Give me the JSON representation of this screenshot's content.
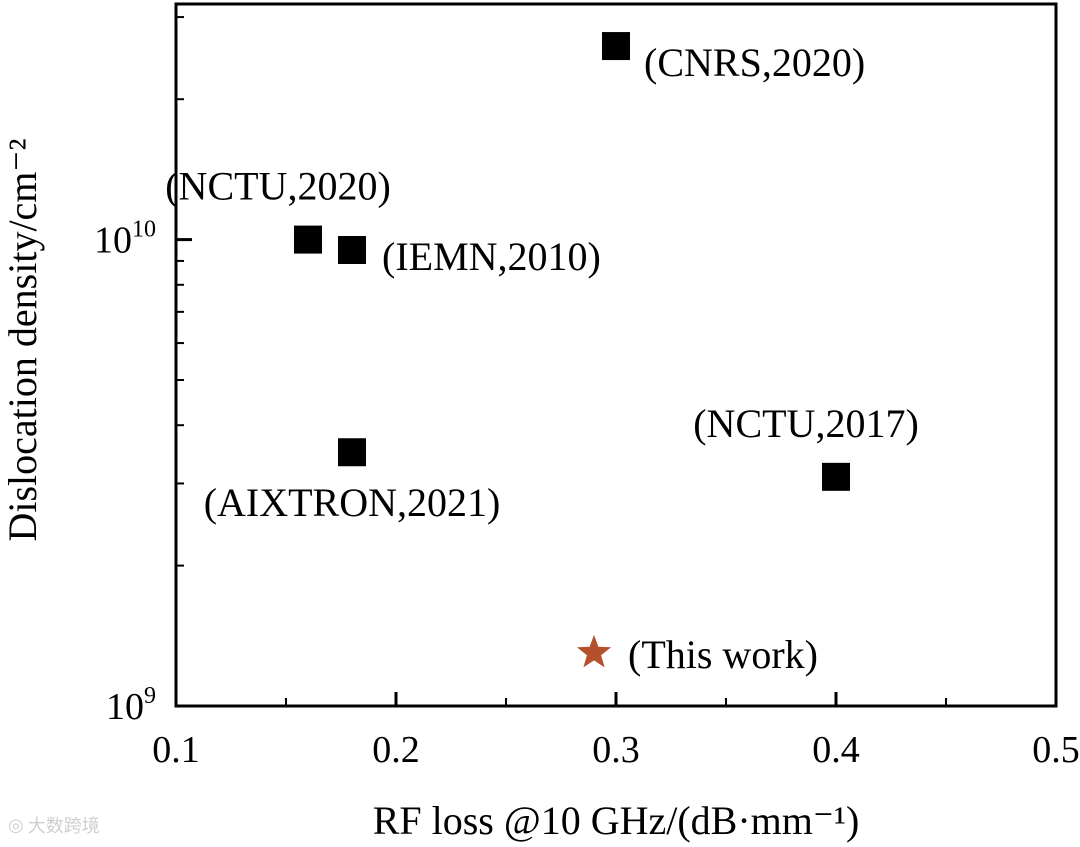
{
  "chart_data": {
    "type": "scatter",
    "title": "",
    "xlabel": "RF loss @10 GHz/(dB·mm⁻¹)",
    "ylabel": "Dislocation density/cm⁻²",
    "xlim": [
      0.1,
      0.5
    ],
    "ylim": [
      1000000000.0,
      30000000000.0
    ],
    "yscale": "log",
    "grid": false,
    "x_ticks": [
      "0.1",
      "0.2",
      "0.3",
      "0.4",
      "0.5"
    ],
    "y_ticks": [
      {
        "base": "10",
        "exp": "9"
      },
      {
        "base": "10",
        "exp": "10"
      }
    ],
    "points": [
      {
        "label": "(CNRS,2020)",
        "x": 0.3,
        "y": 26000000000.0,
        "marker": "square",
        "color": "#000000"
      },
      {
        "label": "(NCTU,2020)",
        "x": 0.16,
        "y": 10000000000.0,
        "marker": "square",
        "color": "#000000"
      },
      {
        "label": "(IEMN,2010)",
        "x": 0.18,
        "y": 9500000000.0,
        "marker": "square",
        "color": "#000000"
      },
      {
        "label": "(AIXTRON,2021)",
        "x": 0.18,
        "y": 3500000000.0,
        "marker": "square",
        "color": "#000000"
      },
      {
        "label": "(NCTU,2017)",
        "x": 0.4,
        "y": 3100000000.0,
        "marker": "square",
        "color": "#000000"
      },
      {
        "label": "(This work)",
        "x": 0.29,
        "y": 1300000000.0,
        "marker": "star",
        "color": "#b5502d"
      }
    ]
  },
  "watermark": {
    "text": "大数跨境"
  }
}
